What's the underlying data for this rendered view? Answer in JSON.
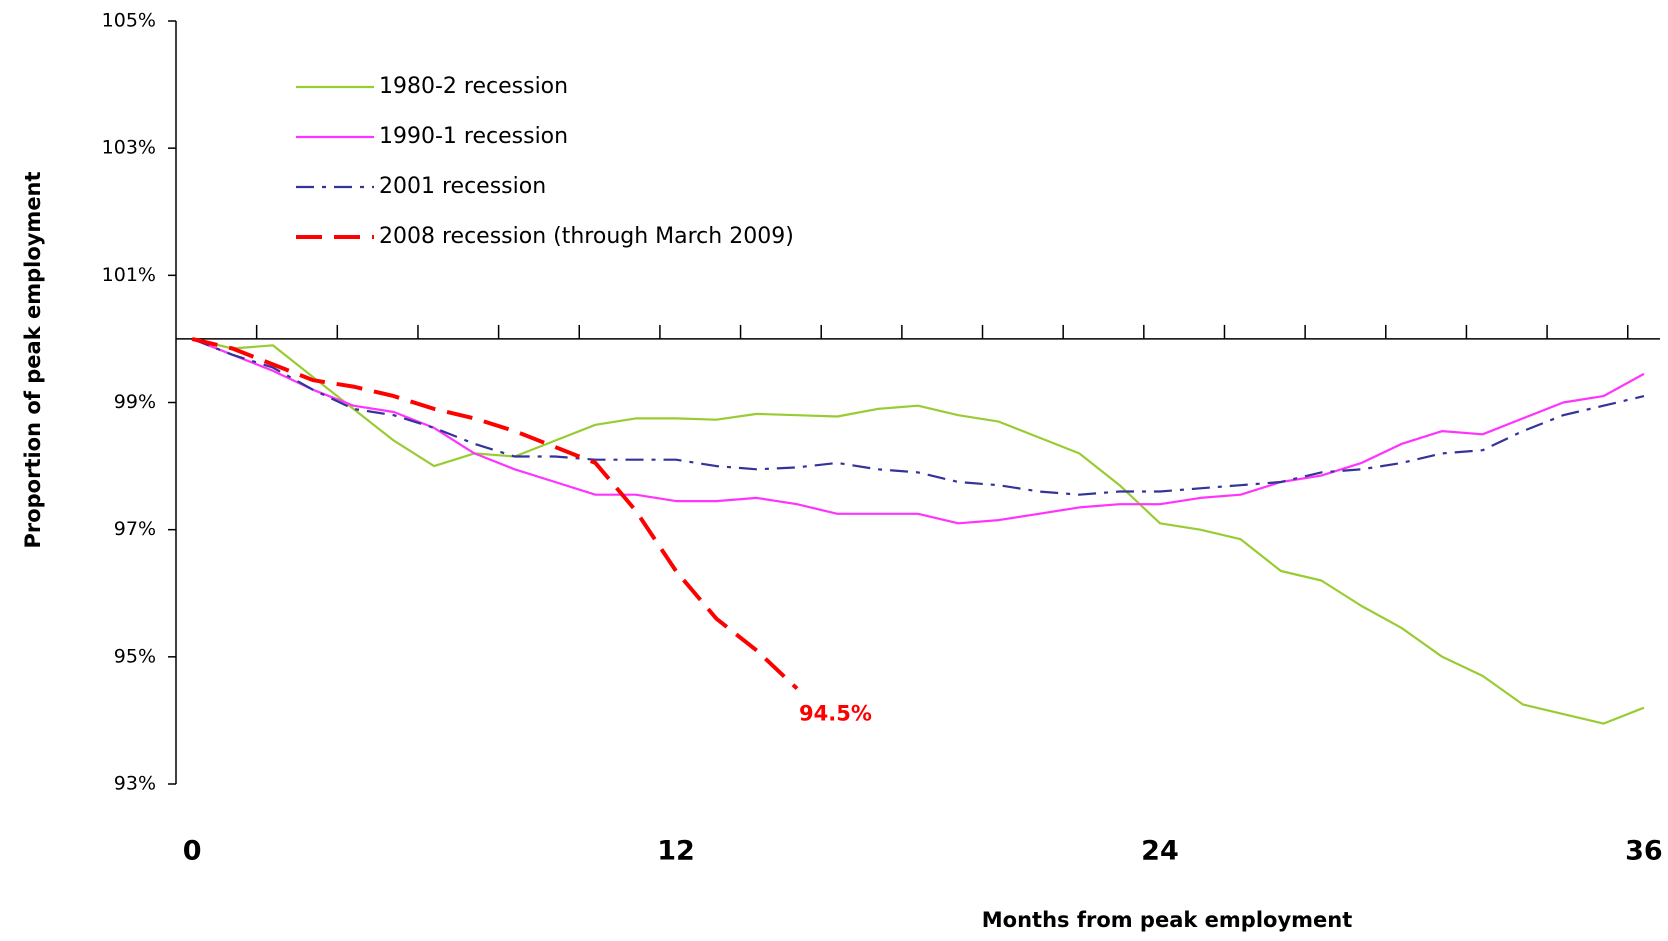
{
  "chart_data": {
    "type": "line",
    "xlabel": "Months from peak employment",
    "ylabel": "Proportion of peak employment",
    "x": [
      0,
      1,
      2,
      3,
      4,
      5,
      6,
      7,
      8,
      9,
      10,
      11,
      12,
      13,
      14,
      15,
      16,
      17,
      18,
      19,
      20,
      21,
      22,
      23,
      24,
      25,
      26,
      27,
      28,
      29,
      30,
      31,
      32,
      33,
      34,
      35,
      36
    ],
    "series": [
      {
        "name": "1980-2 recession",
        "color": "#99cc33",
        "style": "solid",
        "values": [
          100,
          99.85,
          99.9,
          99.4,
          98.9,
          98.4,
          98.0,
          98.2,
          98.15,
          98.4,
          98.65,
          98.75,
          98.75,
          98.73,
          98.82,
          98.8,
          98.78,
          98.9,
          98.95,
          98.8,
          98.7,
          98.45,
          98.2,
          97.7,
          97.1,
          97.0,
          96.85,
          96.35,
          96.2,
          95.8,
          95.45,
          95.0,
          94.7,
          94.25,
          94.1,
          93.95,
          94.2
        ]
      },
      {
        "name": "1990-1 recession",
        "color": "#ff33ff",
        "style": "solid",
        "values": [
          100,
          99.75,
          99.5,
          99.2,
          98.95,
          98.85,
          98.6,
          98.2,
          97.95,
          97.75,
          97.55,
          97.55,
          97.45,
          97.45,
          97.5,
          97.4,
          97.25,
          97.25,
          97.25,
          97.1,
          97.15,
          97.25,
          97.35,
          97.4,
          97.4,
          97.5,
          97.55,
          97.75,
          97.85,
          98.05,
          98.35,
          98.55,
          98.5,
          98.75,
          99.0,
          99.1,
          99.45
        ]
      },
      {
        "name": "2001 recession",
        "color": "#333399",
        "style": "dashdot",
        "values": [
          100,
          99.75,
          99.55,
          99.2,
          98.9,
          98.8,
          98.6,
          98.35,
          98.15,
          98.15,
          98.1,
          98.1,
          98.1,
          98.0,
          97.95,
          97.98,
          98.05,
          97.95,
          97.9,
          97.75,
          97.7,
          97.6,
          97.55,
          97.6,
          97.6,
          97.65,
          97.7,
          97.75,
          97.9,
          97.95,
          98.05,
          98.2,
          98.25,
          98.55,
          98.8,
          98.95,
          99.1
        ]
      },
      {
        "name": "2008 recession (through March 2009)",
        "color": "#ff0000",
        "style": "dashed",
        "values": [
          100,
          99.85,
          99.6,
          99.35,
          99.25,
          99.1,
          98.9,
          98.75,
          98.55,
          98.3,
          98.05,
          97.3,
          96.35,
          95.6,
          95.1,
          94.5,
          null,
          null,
          null,
          null,
          null,
          null,
          null,
          null,
          null,
          null,
          null,
          null,
          null,
          null,
          null,
          null,
          null,
          null,
          null,
          null,
          null
        ],
        "value_labels": [
          null,
          null,
          null,
          null,
          null,
          null,
          null,
          null,
          null,
          null,
          null,
          null,
          null,
          null,
          null,
          "94.5%",
          null,
          null,
          null,
          null,
          null,
          null,
          null,
          null,
          null,
          null,
          null,
          null,
          null,
          null,
          null,
          null,
          null,
          null,
          null,
          null,
          null
        ]
      }
    ],
    "xlim": [
      -0.4,
      36.4
    ],
    "xticks": [
      0,
      12,
      24,
      36
    ],
    "xminorticks": [
      1.6,
      3.6,
      5.6,
      7.6,
      9.6,
      11.6,
      13.6,
      15.6,
      17.6,
      19.6,
      21.6,
      23.6,
      25.6,
      27.6,
      29.6,
      31.6,
      33.6,
      35.6
    ],
    "xaxis_at": 100,
    "ylim": [
      93,
      105
    ],
    "yticks": [
      {
        "value": 93,
        "label": "93%"
      },
      {
        "value": 95,
        "label": "95%"
      },
      {
        "value": 97,
        "label": "97%"
      },
      {
        "value": 99,
        "label": "99%"
      },
      {
        "value": 101,
        "label": "101%"
      },
      {
        "value": 103,
        "label": "103%"
      },
      {
        "value": 105,
        "label": "105%"
      }
    ],
    "legend": "upper left",
    "grid": false
  }
}
